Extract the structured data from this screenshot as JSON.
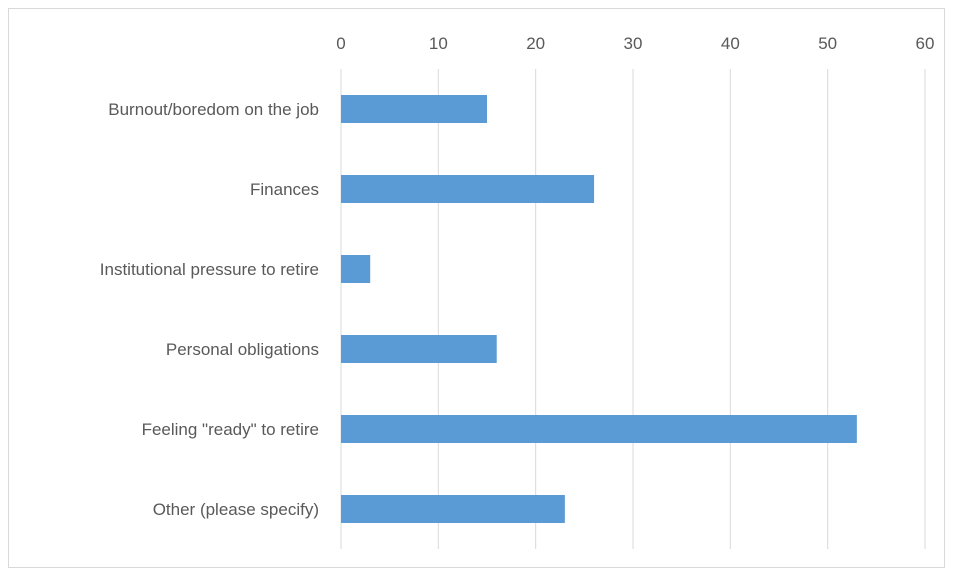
{
  "chart_data": {
    "type": "bar",
    "orientation": "horizontal",
    "title": "",
    "xlabel": "",
    "ylabel": "",
    "categories": [
      "Burnout/boredom on the job",
      "Finances",
      "Institutional pressure to retire",
      "Personal obligations",
      "Feeling \"ready\" to retire",
      "Other (please specify)"
    ],
    "values": [
      15,
      26,
      3,
      16,
      53,
      23
    ],
    "xlim": [
      0,
      60
    ],
    "xticks": [
      0,
      10,
      20,
      30,
      40,
      50,
      60
    ],
    "xtick_labels": [
      "0",
      "10",
      "20",
      "30",
      "40",
      "50",
      "60"
    ],
    "axis_position": "top",
    "grid": true,
    "legend": "none",
    "colors": {
      "bar": "#5b9bd5",
      "grid": "#d9d9d9",
      "text": "#595959",
      "border": "#d9d9d9"
    }
  }
}
